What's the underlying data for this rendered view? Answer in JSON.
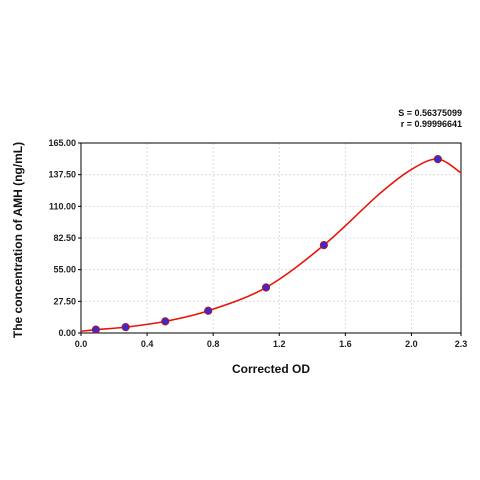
{
  "chart_data": {
    "type": "scatter",
    "xlabel": "Corrected OD",
    "ylabel": "The concentration of AMH (ng/mL)",
    "xlim": [
      0.0,
      2.3
    ],
    "ylim": [
      0.0,
      165.0
    ],
    "x_ticks": [
      "0.0",
      "0.4",
      "0.8",
      "1.2",
      "1.6",
      "2.0",
      "2.3"
    ],
    "x_tick_values": [
      0.0,
      0.4,
      0.8,
      1.2,
      1.6,
      2.0,
      2.3
    ],
    "y_ticks": [
      "0.00",
      "27.50",
      "55.00",
      "82.50",
      "110.00",
      "137.50",
      "165.00"
    ],
    "y_tick_values": [
      0.0,
      27.5,
      55.0,
      82.5,
      110.0,
      137.5,
      165.0
    ],
    "grid": true,
    "stats": {
      "s_label": "S = 0.56375099",
      "r_label": "r = 0.99996641"
    },
    "points": [
      {
        "x": 0.09,
        "y": 2.9
      },
      {
        "x": 0.27,
        "y": 5.1
      },
      {
        "x": 0.51,
        "y": 10.1
      },
      {
        "x": 0.77,
        "y": 19.3
      },
      {
        "x": 1.12,
        "y": 39.5
      },
      {
        "x": 1.47,
        "y": 76.3
      },
      {
        "x": 2.16,
        "y": 151.0
      }
    ],
    "curve": {
      "color": "#e8140c",
      "x": [
        0.0,
        0.09,
        0.27,
        0.51,
        0.77,
        1.12,
        1.47,
        1.8,
        2.0,
        2.16,
        2.3
      ],
      "y": [
        1.5,
        2.9,
        5.1,
        10.1,
        19.3,
        39.5,
        76.3,
        120.0,
        142.0,
        151.0,
        139.0
      ]
    },
    "marker_color": "#3a2ad6",
    "marker_edge": "#b01818"
  }
}
